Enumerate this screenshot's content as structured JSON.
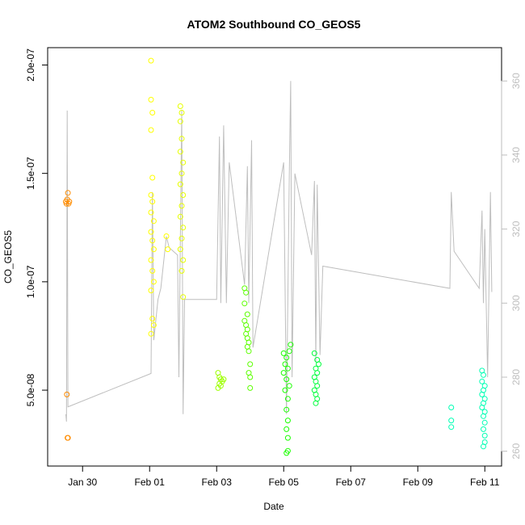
{
  "chart_data": {
    "type": "scatter",
    "title": "ATOM2 Southbound CO_GEOS5",
    "xlabel": "Date",
    "ylabel": "CO_GEOS5",
    "xlim": [
      "2017-01-28T23:00",
      "2017-02-11T12:00"
    ],
    "ylim": [
      1.5e-08,
      2.08e-07
    ],
    "y2lim": [
      256,
      369
    ],
    "x_ticks": [
      {
        "x": "2017-01-30",
        "label": "Jan 30"
      },
      {
        "x": "2017-02-01",
        "label": "Feb 01"
      },
      {
        "x": "2017-02-03",
        "label": "Feb 03"
      },
      {
        "x": "2017-02-05",
        "label": "Feb 05"
      },
      {
        "x": "2017-02-07",
        "label": "Feb 07"
      },
      {
        "x": "2017-02-09",
        "label": "Feb 09"
      },
      {
        "x": "2017-02-11",
        "label": "Feb 11"
      }
    ],
    "y_ticks": [
      {
        "y": 5e-08,
        "label": "5.0e-08"
      },
      {
        "y": 1e-07,
        "label": "1.0e-07"
      },
      {
        "y": 1.5e-07,
        "label": "1.5e-07"
      },
      {
        "y": 2e-07,
        "label": "2.0e-07"
      }
    ],
    "y2_ticks": [
      260,
      280,
      300,
      320,
      340,
      360
    ],
    "grid": false,
    "series": [
      {
        "kind": "line",
        "color": "#bebebe",
        "axis": "right",
        "points": [
          [
            "2017-01-29T12:00",
            270
          ],
          [
            "2017-01-29T12:30",
            268
          ],
          [
            "2017-01-29T13:00",
            352
          ],
          [
            "2017-01-29T13:30",
            272
          ],
          [
            "2017-02-01T01:00",
            281
          ],
          [
            "2017-02-01T02:00",
            330
          ],
          [
            "2017-02-01T03:00",
            290
          ],
          [
            "2017-02-01T06:00",
            301
          ],
          [
            "2017-02-01T08:00",
            304
          ],
          [
            "2017-02-01T12:00",
            318
          ],
          [
            "2017-02-01T14:00",
            315
          ],
          [
            "2017-02-01T20:00",
            313
          ],
          [
            "2017-02-01T21:00",
            280
          ],
          [
            "2017-02-01T23:00",
            352
          ],
          [
            "2017-02-02T00:00",
            270
          ],
          [
            "2017-02-02T01:00",
            301
          ],
          [
            "2017-02-03T00:00",
            301
          ],
          [
            "2017-02-03T02:00",
            345
          ],
          [
            "2017-02-03T03:00",
            300
          ],
          [
            "2017-02-03T05:00",
            348
          ],
          [
            "2017-02-03T07:00",
            300
          ],
          [
            "2017-02-03T09:00",
            338
          ],
          [
            "2017-02-03T20:00",
            305
          ],
          [
            "2017-02-03T22:00",
            337
          ],
          [
            "2017-02-03T23:00",
            300
          ],
          [
            "2017-02-04T01:00",
            344
          ],
          [
            "2017-02-04T02:00",
            288
          ],
          [
            "2017-02-05T00:00",
            338
          ],
          [
            "2017-02-05T02:00",
            270
          ],
          [
            "2017-02-05T04:00",
            335
          ],
          [
            "2017-02-05T05:00",
            360
          ],
          [
            "2017-02-05T06:00",
            280
          ],
          [
            "2017-02-05T08:00",
            335
          ],
          [
            "2017-02-05T20:00",
            313
          ],
          [
            "2017-02-05T22:00",
            333
          ],
          [
            "2017-02-05T23:00",
            284
          ],
          [
            "2017-02-06T00:00",
            332
          ],
          [
            "2017-02-06T02:00",
            286
          ],
          [
            "2017-02-06T04:00",
            310
          ],
          [
            "2017-02-09T23:00",
            304
          ],
          [
            "2017-02-10T00:00",
            330
          ],
          [
            "2017-02-10T02:00",
            314
          ],
          [
            "2017-02-10T20:00",
            304
          ],
          [
            "2017-02-10T22:00",
            325
          ],
          [
            "2017-02-10T23:00",
            300
          ],
          [
            "2017-02-11T00:00",
            320
          ],
          [
            "2017-02-11T02:00",
            280
          ],
          [
            "2017-02-11T04:00",
            330
          ],
          [
            "2017-02-11T05:00",
            303
          ]
        ]
      },
      {
        "kind": "points",
        "color": "#ff8c00",
        "points": [
          [
            "2017-01-29T12:00",
            1.37e-07
          ],
          [
            "2017-01-29T12:30",
            1.36e-07
          ],
          [
            "2017-01-29T13:00",
            1.38e-07
          ],
          [
            "2017-01-29T13:30",
            1.41e-07
          ],
          [
            "2017-01-29T14:00",
            1.36e-07
          ],
          [
            "2017-01-29T14:30",
            1.37e-07
          ],
          [
            "2017-01-29T12:45",
            4.8e-08
          ],
          [
            "2017-01-29T13:15",
            2.8e-08
          ],
          [
            "2017-01-29T13:30",
            2.8e-08
          ]
        ]
      },
      {
        "kind": "points",
        "color": "#ffff00",
        "points": [
          [
            "2017-02-01T01:00",
            2.02e-07
          ],
          [
            "2017-02-01T01:00",
            1.84e-07
          ],
          [
            "2017-02-01T02:00",
            1.78e-07
          ],
          [
            "2017-02-01T01:00",
            1.7e-07
          ],
          [
            "2017-02-01T02:00",
            1.48e-07
          ],
          [
            "2017-02-01T01:00",
            1.4e-07
          ],
          [
            "2017-02-01T02:00",
            1.37e-07
          ],
          [
            "2017-02-01T01:00",
            1.32e-07
          ],
          [
            "2017-02-01T03:00",
            1.28e-07
          ],
          [
            "2017-02-01T01:00",
            1.23e-07
          ],
          [
            "2017-02-01T02:00",
            1.19e-07
          ],
          [
            "2017-02-01T03:00",
            1.15e-07
          ],
          [
            "2017-02-01T01:00",
            1.1e-07
          ],
          [
            "2017-02-01T02:00",
            1.05e-07
          ],
          [
            "2017-02-01T03:00",
            1e-07
          ],
          [
            "2017-02-01T01:00",
            9.6e-08
          ],
          [
            "2017-02-01T02:00",
            8.3e-08
          ],
          [
            "2017-02-01T03:00",
            8e-08
          ],
          [
            "2017-02-01T01:00",
            7.6e-08
          ],
          [
            "2017-02-01T12:00",
            1.21e-07
          ],
          [
            "2017-02-01T13:00",
            1.15e-07
          ]
        ]
      },
      {
        "kind": "points",
        "color": "#e6ff00",
        "points": [
          [
            "2017-02-01T22:00",
            1.81e-07
          ],
          [
            "2017-02-01T23:00",
            1.78e-07
          ],
          [
            "2017-02-01T22:00",
            1.74e-07
          ],
          [
            "2017-02-01T23:00",
            1.66e-07
          ],
          [
            "2017-02-01T22:00",
            1.6e-07
          ],
          [
            "2017-02-02T00:00",
            1.55e-07
          ],
          [
            "2017-02-01T23:00",
            1.5e-07
          ],
          [
            "2017-02-01T22:00",
            1.45e-07
          ],
          [
            "2017-02-02T00:00",
            1.4e-07
          ],
          [
            "2017-02-01T23:00",
            1.35e-07
          ],
          [
            "2017-02-01T22:00",
            1.3e-07
          ],
          [
            "2017-02-02T00:00",
            1.25e-07
          ],
          [
            "2017-02-01T23:00",
            1.2e-07
          ],
          [
            "2017-02-01T22:00",
            1.15e-07
          ],
          [
            "2017-02-02T00:00",
            1.1e-07
          ],
          [
            "2017-02-01T23:00",
            1.05e-07
          ],
          [
            "2017-02-02T00:00",
            9.3e-08
          ]
        ]
      },
      {
        "kind": "points",
        "color": "#9cff00",
        "points": [
          [
            "2017-02-03T01:00",
            5.8e-08
          ],
          [
            "2017-02-03T02:00",
            5.6e-08
          ],
          [
            "2017-02-03T03:00",
            5.5e-08
          ],
          [
            "2017-02-03T04:00",
            5.4e-08
          ],
          [
            "2017-02-03T02:00",
            5.3e-08
          ],
          [
            "2017-02-03T03:00",
            5.2e-08
          ],
          [
            "2017-02-03T01:00",
            5.1e-08
          ],
          [
            "2017-02-03T05:00",
            5.5e-08
          ]
        ]
      },
      {
        "kind": "points",
        "color": "#5cff00",
        "points": [
          [
            "2017-02-03T20:00",
            9.7e-08
          ],
          [
            "2017-02-03T21:00",
            9.5e-08
          ],
          [
            "2017-02-03T20:00",
            9e-08
          ],
          [
            "2017-02-03T22:00",
            8.5e-08
          ],
          [
            "2017-02-03T20:00",
            8.2e-08
          ],
          [
            "2017-02-03T21:00",
            8e-08
          ],
          [
            "2017-02-03T22:00",
            7.8e-08
          ],
          [
            "2017-02-03T21:00",
            7.6e-08
          ],
          [
            "2017-02-03T22:00",
            7.4e-08
          ],
          [
            "2017-02-03T23:00",
            7.2e-08
          ],
          [
            "2017-02-03T22:00",
            7e-08
          ],
          [
            "2017-02-03T23:00",
            6.8e-08
          ],
          [
            "2017-02-04T00:00",
            6.2e-08
          ],
          [
            "2017-02-03T23:00",
            5.8e-08
          ],
          [
            "2017-02-04T00:00",
            5.6e-08
          ],
          [
            "2017-02-04T00:00",
            5.1e-08
          ]
        ]
      },
      {
        "kind": "points",
        "color": "#1aff00",
        "points": [
          [
            "2017-02-05T00:00",
            6.7e-08
          ],
          [
            "2017-02-05T02:00",
            6.5e-08
          ],
          [
            "2017-02-05T04:00",
            6.8e-08
          ],
          [
            "2017-02-05T05:00",
            7.1e-08
          ],
          [
            "2017-02-05T01:00",
            6.2e-08
          ],
          [
            "2017-02-05T03:00",
            6e-08
          ],
          [
            "2017-02-05T00:00",
            5.8e-08
          ],
          [
            "2017-02-05T02:00",
            5.5e-08
          ],
          [
            "2017-02-05T04:00",
            5.2e-08
          ],
          [
            "2017-02-05T01:00",
            5e-08
          ],
          [
            "2017-02-05T03:00",
            4.6e-08
          ],
          [
            "2017-02-05T02:00",
            4.1e-08
          ],
          [
            "2017-02-05T03:00",
            3.6e-08
          ],
          [
            "2017-02-05T02:00",
            3.2e-08
          ],
          [
            "2017-02-05T03:00",
            2.8e-08
          ],
          [
            "2017-02-05T03:00",
            2.2e-08
          ],
          [
            "2017-02-05T02:00",
            2.1e-08
          ]
        ]
      },
      {
        "kind": "points",
        "color": "#00ff3c",
        "points": [
          [
            "2017-02-05T22:00",
            6.7e-08
          ],
          [
            "2017-02-06T00:00",
            6.4e-08
          ],
          [
            "2017-02-06T01:00",
            6.2e-08
          ],
          [
            "2017-02-05T23:00",
            6e-08
          ],
          [
            "2017-02-06T00:00",
            5.8e-08
          ],
          [
            "2017-02-05T22:00",
            5.6e-08
          ],
          [
            "2017-02-05T23:00",
            5.4e-08
          ],
          [
            "2017-02-06T00:00",
            5.2e-08
          ],
          [
            "2017-02-05T22:00",
            5e-08
          ],
          [
            "2017-02-05T23:00",
            4.8e-08
          ],
          [
            "2017-02-06T00:00",
            4.6e-08
          ],
          [
            "2017-02-05T23:00",
            4.4e-08
          ]
        ]
      },
      {
        "kind": "points",
        "color": "#00ffb4",
        "points": [
          [
            "2017-02-10T00:00",
            4.2e-08
          ],
          [
            "2017-02-10T00:00",
            3.6e-08
          ],
          [
            "2017-02-10T00:00",
            3.3e-08
          ],
          [
            "2017-02-10T22:00",
            5.9e-08
          ],
          [
            "2017-02-10T23:00",
            5.7e-08
          ],
          [
            "2017-02-10T22:00",
            5.4e-08
          ],
          [
            "2017-02-11T00:00",
            5.2e-08
          ],
          [
            "2017-02-10T23:00",
            5e-08
          ],
          [
            "2017-02-10T22:00",
            4.8e-08
          ],
          [
            "2017-02-11T00:00",
            4.6e-08
          ],
          [
            "2017-02-10T23:00",
            4.4e-08
          ],
          [
            "2017-02-10T22:00",
            4.2e-08
          ],
          [
            "2017-02-11T00:00",
            4e-08
          ],
          [
            "2017-02-10T23:00",
            3.8e-08
          ],
          [
            "2017-02-11T00:00",
            3.5e-08
          ],
          [
            "2017-02-10T23:00",
            3.2e-08
          ],
          [
            "2017-02-11T00:00",
            2.9e-08
          ],
          [
            "2017-02-11T00:00",
            2.6e-08
          ],
          [
            "2017-02-10T23:00",
            2.4e-08
          ]
        ]
      }
    ]
  }
}
